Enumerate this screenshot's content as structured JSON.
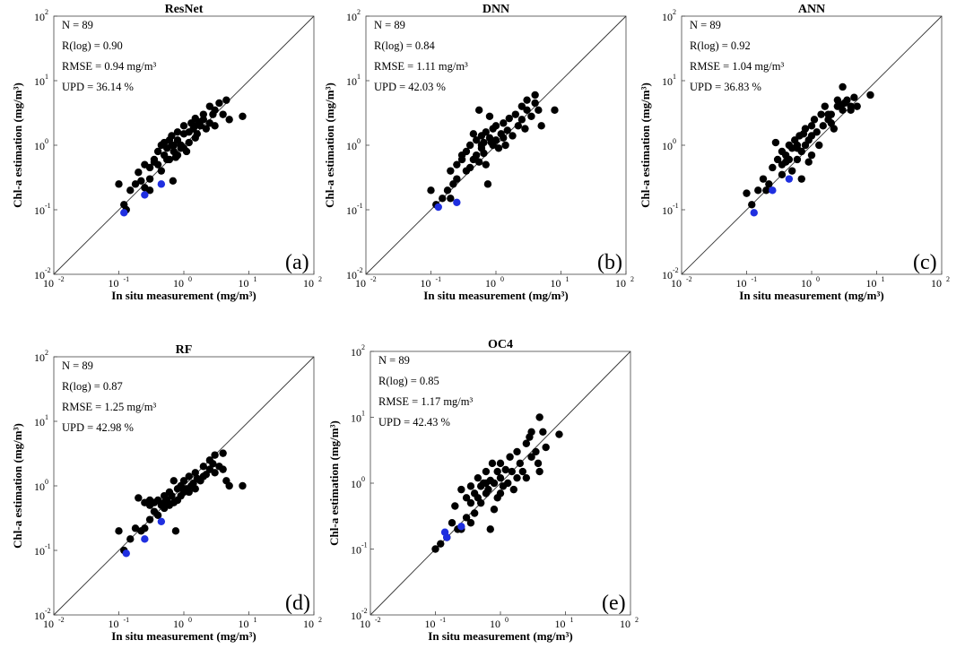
{
  "figure": {
    "ylabel": "Chl-a estimation (mg/m³)",
    "xlabel": "In situ measurement (mg/m³)",
    "tick_labels": [
      "10",
      "10",
      "10",
      "10",
      "10"
    ],
    "tick_exponents": [
      "-2",
      "-1",
      "0",
      "1",
      "2"
    ]
  },
  "chart_data": [
    {
      "type": "scatter",
      "title": "ResNet",
      "panel": "(a)",
      "xlabel": "In situ measurement (mg/m³)",
      "ylabel": "Chl-a estimation (mg/m³)",
      "scale": "log",
      "xlim": [
        0.01,
        100
      ],
      "ylim": [
        0.01,
        100
      ],
      "stats": [
        "N = 89",
        "R(log) = 0.90",
        "RMSE = 0.94 mg/m³",
        "UPD = 36.14 %"
      ],
      "points": [
        [
          0.1,
          0.25
        ],
        [
          0.12,
          0.12
        ],
        [
          0.13,
          0.1
        ],
        [
          0.15,
          0.2
        ],
        [
          0.18,
          0.25
        ],
        [
          0.2,
          0.38
        ],
        [
          0.22,
          0.28
        ],
        [
          0.25,
          0.22
        ],
        [
          0.25,
          0.5
        ],
        [
          0.3,
          0.45
        ],
        [
          0.3,
          0.3
        ],
        [
          0.35,
          0.6
        ],
        [
          0.35,
          0.55
        ],
        [
          0.4,
          0.5
        ],
        [
          0.4,
          0.8
        ],
        [
          0.45,
          1.0
        ],
        [
          0.5,
          0.7
        ],
        [
          0.5,
          1.1
        ],
        [
          0.55,
          0.9
        ],
        [
          0.6,
          1.2
        ],
        [
          0.6,
          0.6
        ],
        [
          0.65,
          1.4
        ],
        [
          0.7,
          0.8
        ],
        [
          0.7,
          1.0
        ],
        [
          0.75,
          0.65
        ],
        [
          0.8,
          1.6
        ],
        [
          0.8,
          1.2
        ],
        [
          0.9,
          1.0
        ],
        [
          0.9,
          0.9
        ],
        [
          1.0,
          2.0
        ],
        [
          1.0,
          1.5
        ],
        [
          1.1,
          0.8
        ],
        [
          1.2,
          1.6
        ],
        [
          1.2,
          1.1
        ],
        [
          1.3,
          2.2
        ],
        [
          1.4,
          1.8
        ],
        [
          1.5,
          2.6
        ],
        [
          1.5,
          1.3
        ],
        [
          1.6,
          1.5
        ],
        [
          1.8,
          2.0
        ],
        [
          2.0,
          3.0
        ],
        [
          2.0,
          2.5
        ],
        [
          2.2,
          1.8
        ],
        [
          2.5,
          4.0
        ],
        [
          2.5,
          2.2
        ],
        [
          3.0,
          3.5
        ],
        [
          3.0,
          2.0
        ],
        [
          3.5,
          4.5
        ],
        [
          4.0,
          3.0
        ],
        [
          4.5,
          5.0
        ],
        [
          5.0,
          2.5
        ],
        [
          0.65,
          1.0
        ],
        [
          0.8,
          0.7
        ],
        [
          1.5,
          2.0
        ],
        [
          2.8,
          3.0
        ],
        [
          0.45,
          0.4
        ],
        [
          0.3,
          0.2
        ],
        [
          1.0,
          0.9
        ],
        [
          1.7,
          2.3
        ],
        [
          0.55,
          0.6
        ],
        [
          8.0,
          2.8
        ],
        [
          0.68,
          0.28
        ]
      ],
      "highlight_points": [
        [
          0.12,
          0.09
        ],
        [
          0.25,
          0.17
        ],
        [
          0.45,
          0.25
        ]
      ]
    },
    {
      "type": "scatter",
      "title": "DNN",
      "panel": "(b)",
      "xlabel": "In situ measurement (mg/m³)",
      "ylabel": "Chl-a estimation (mg/m³)",
      "scale": "log",
      "xlim": [
        0.01,
        100
      ],
      "ylim": [
        0.01,
        100
      ],
      "stats": [
        "N = 89",
        "R(log) = 0.84",
        "RMSE = 1.11 mg/m³",
        "UPD = 42.03 %"
      ],
      "points": [
        [
          0.1,
          0.2
        ],
        [
          0.12,
          0.12
        ],
        [
          0.15,
          0.15
        ],
        [
          0.18,
          0.2
        ],
        [
          0.2,
          0.4
        ],
        [
          0.22,
          0.25
        ],
        [
          0.25,
          0.3
        ],
        [
          0.25,
          0.5
        ],
        [
          0.3,
          0.6
        ],
        [
          0.35,
          0.8
        ],
        [
          0.35,
          0.4
        ],
        [
          0.4,
          1.0
        ],
        [
          0.45,
          0.6
        ],
        [
          0.45,
          1.5
        ],
        [
          0.5,
          1.2
        ],
        [
          0.5,
          0.7
        ],
        [
          0.55,
          3.5
        ],
        [
          0.6,
          0.9
        ],
        [
          0.6,
          1.4
        ],
        [
          0.65,
          1.1
        ],
        [
          0.7,
          1.6
        ],
        [
          0.7,
          0.5
        ],
        [
          0.75,
          0.25
        ],
        [
          0.8,
          1.3
        ],
        [
          0.8,
          2.8
        ],
        [
          0.9,
          1.0
        ],
        [
          0.9,
          1.8
        ],
        [
          1.0,
          1.2
        ],
        [
          1.0,
          2.0
        ],
        [
          1.1,
          0.9
        ],
        [
          1.2,
          1.5
        ],
        [
          1.3,
          2.2
        ],
        [
          1.4,
          1.0
        ],
        [
          1.5,
          1.7
        ],
        [
          1.6,
          2.6
        ],
        [
          1.8,
          1.4
        ],
        [
          2.0,
          3.0
        ],
        [
          2.2,
          2.0
        ],
        [
          2.5,
          4.0
        ],
        [
          2.5,
          2.5
        ],
        [
          3.0,
          3.5
        ],
        [
          3.0,
          5.0
        ],
        [
          3.5,
          2.8
        ],
        [
          4.0,
          4.5
        ],
        [
          4.0,
          6.0
        ],
        [
          4.5,
          3.5
        ],
        [
          5.0,
          2.0
        ],
        [
          8.0,
          3.5
        ],
        [
          0.55,
          0.55
        ],
        [
          0.3,
          0.7
        ],
        [
          0.65,
          0.75
        ],
        [
          0.85,
          1.1
        ],
        [
          1.3,
          1.3
        ],
        [
          0.4,
          0.45
        ],
        [
          0.6,
          1.0
        ],
        [
          2.8,
          1.8
        ],
        [
          0.2,
          0.15
        ]
      ],
      "highlight_points": [
        [
          0.13,
          0.11
        ],
        [
          0.25,
          0.13
        ]
      ]
    },
    {
      "type": "scatter",
      "title": "ANN",
      "panel": "(c)",
      "xlabel": "In situ measurement (mg/m³)",
      "ylabel": "Chl-a estimation (mg/m³)",
      "scale": "log",
      "xlim": [
        0.01,
        100
      ],
      "ylim": [
        0.01,
        100
      ],
      "stats": [
        "N = 89",
        "R(log) = 0.92",
        "RMSE = 1.04 mg/m³",
        "UPD = 36.83 %"
      ],
      "points": [
        [
          0.1,
          0.18
        ],
        [
          0.12,
          0.12
        ],
        [
          0.15,
          0.2
        ],
        [
          0.18,
          0.3
        ],
        [
          0.2,
          0.2
        ],
        [
          0.22,
          0.25
        ],
        [
          0.25,
          0.45
        ],
        [
          0.28,
          1.1
        ],
        [
          0.3,
          0.6
        ],
        [
          0.35,
          0.5
        ],
        [
          0.35,
          0.8
        ],
        [
          0.4,
          0.7
        ],
        [
          0.4,
          0.55
        ],
        [
          0.45,
          1.0
        ],
        [
          0.5,
          0.9
        ],
        [
          0.5,
          0.4
        ],
        [
          0.55,
          1.2
        ],
        [
          0.6,
          1.0
        ],
        [
          0.6,
          0.6
        ],
        [
          0.65,
          1.4
        ],
        [
          0.7,
          0.8
        ],
        [
          0.7,
          0.3
        ],
        [
          0.75,
          1.5
        ],
        [
          0.8,
          1.8
        ],
        [
          0.8,
          1.0
        ],
        [
          0.9,
          1.2
        ],
        [
          0.9,
          0.55
        ],
        [
          1.0,
          2.0
        ],
        [
          1.0,
          1.4
        ],
        [
          1.1,
          2.5
        ],
        [
          1.2,
          1.6
        ],
        [
          1.3,
          1.0
        ],
        [
          1.4,
          3.0
        ],
        [
          1.5,
          2.0
        ],
        [
          1.6,
          4.0
        ],
        [
          1.8,
          2.5
        ],
        [
          2.0,
          3.0
        ],
        [
          2.2,
          1.8
        ],
        [
          2.5,
          4.0
        ],
        [
          2.5,
          5.0
        ],
        [
          3.0,
          3.5
        ],
        [
          3.0,
          8.0
        ],
        [
          3.5,
          5.0
        ],
        [
          4.0,
          4.0
        ],
        [
          4.0,
          3.5
        ],
        [
          4.5,
          5.5
        ],
        [
          5.0,
          4.0
        ],
        [
          8.0,
          6.0
        ],
        [
          3.2,
          4.5
        ],
        [
          2.0,
          2.2
        ],
        [
          1.0,
          0.7
        ],
        [
          0.35,
          0.35
        ],
        [
          0.45,
          0.6
        ],
        [
          1.8,
          3.0
        ],
        [
          2.8,
          4.2
        ],
        [
          0.6,
          0.9
        ]
      ],
      "highlight_points": [
        [
          0.13,
          0.09
        ],
        [
          0.25,
          0.2
        ],
        [
          0.45,
          0.3
        ]
      ]
    },
    {
      "type": "scatter",
      "title": "RF",
      "panel": "(d)",
      "xlabel": "In situ measurement (mg/m³)",
      "ylabel": "Chl-a estimation (mg/m³)",
      "scale": "log",
      "xlim": [
        0.01,
        100
      ],
      "ylim": [
        0.01,
        100
      ],
      "stats": [
        "N = 89",
        "R(log) = 0.87",
        "RMSE = 1.25 mg/m³",
        "UPD = 42.98 %"
      ],
      "points": [
        [
          0.1,
          0.2
        ],
        [
          0.12,
          0.1
        ],
        [
          0.15,
          0.15
        ],
        [
          0.18,
          0.22
        ],
        [
          0.2,
          0.65
        ],
        [
          0.22,
          0.2
        ],
        [
          0.25,
          0.22
        ],
        [
          0.25,
          0.55
        ],
        [
          0.3,
          0.5
        ],
        [
          0.3,
          0.3
        ],
        [
          0.35,
          0.55
        ],
        [
          0.35,
          0.4
        ],
        [
          0.4,
          0.6
        ],
        [
          0.4,
          0.35
        ],
        [
          0.45,
          0.5
        ],
        [
          0.5,
          0.7
        ],
        [
          0.5,
          0.45
        ],
        [
          0.55,
          0.6
        ],
        [
          0.6,
          0.5
        ],
        [
          0.6,
          0.8
        ],
        [
          0.65,
          0.7
        ],
        [
          0.7,
          0.55
        ],
        [
          0.75,
          0.2
        ],
        [
          0.8,
          0.9
        ],
        [
          0.8,
          0.6
        ],
        [
          0.9,
          1.0
        ],
        [
          0.9,
          0.7
        ],
        [
          1.0,
          1.2
        ],
        [
          1.0,
          0.8
        ],
        [
          1.1,
          0.9
        ],
        [
          1.2,
          1.4
        ],
        [
          1.3,
          1.0
        ],
        [
          1.4,
          1.1
        ],
        [
          1.5,
          1.6
        ],
        [
          1.6,
          1.3
        ],
        [
          1.8,
          1.2
        ],
        [
          2.0,
          2.0
        ],
        [
          2.2,
          1.5
        ],
        [
          2.5,
          2.5
        ],
        [
          2.5,
          1.8
        ],
        [
          3.0,
          3.0
        ],
        [
          3.0,
          1.6
        ],
        [
          3.5,
          2.0
        ],
        [
          4.0,
          3.2
        ],
        [
          4.0,
          1.8
        ],
        [
          4.5,
          1.2
        ],
        [
          5.0,
          1.0
        ],
        [
          8.0,
          1.0
        ],
        [
          0.7,
          1.2
        ],
        [
          1.5,
          0.9
        ],
        [
          2.8,
          2.2
        ],
        [
          0.5,
          0.55
        ],
        [
          1.2,
          0.8
        ],
        [
          0.3,
          0.6
        ],
        [
          2.0,
          1.4
        ]
      ],
      "highlight_points": [
        [
          0.13,
          0.09
        ],
        [
          0.25,
          0.15
        ],
        [
          0.45,
          0.28
        ]
      ]
    },
    {
      "type": "scatter",
      "title": "OC4",
      "panel": "(e)",
      "xlabel": "In situ measurement (mg/m³)",
      "ylabel": "Chl-a estimation (mg/m³)",
      "scale": "log",
      "xlim": [
        0.01,
        100
      ],
      "ylim": [
        0.01,
        100
      ],
      "stats": [
        "N = 89",
        "R(log) = 0.85",
        "RMSE = 1.17 mg/m³",
        "UPD = 42.43 %"
      ],
      "points": [
        [
          0.1,
          0.1
        ],
        [
          0.12,
          0.12
        ],
        [
          0.15,
          0.15
        ],
        [
          0.18,
          0.25
        ],
        [
          0.2,
          0.45
        ],
        [
          0.22,
          0.2
        ],
        [
          0.25,
          0.2
        ],
        [
          0.25,
          0.8
        ],
        [
          0.3,
          0.6
        ],
        [
          0.3,
          0.3
        ],
        [
          0.35,
          0.5
        ],
        [
          0.35,
          0.9
        ],
        [
          0.4,
          0.35
        ],
        [
          0.4,
          0.7
        ],
        [
          0.45,
          1.2
        ],
        [
          0.5,
          0.9
        ],
        [
          0.5,
          0.5
        ],
        [
          0.55,
          1.0
        ],
        [
          0.6,
          0.7
        ],
        [
          0.6,
          1.5
        ],
        [
          0.65,
          0.8
        ],
        [
          0.7,
          1.1
        ],
        [
          0.7,
          0.2
        ],
        [
          0.75,
          2.0
        ],
        [
          0.8,
          1.0
        ],
        [
          0.8,
          0.4
        ],
        [
          0.9,
          1.5
        ],
        [
          0.9,
          0.6
        ],
        [
          1.0,
          1.2
        ],
        [
          1.0,
          2.0
        ],
        [
          1.1,
          0.9
        ],
        [
          1.2,
          1.6
        ],
        [
          1.3,
          1.0
        ],
        [
          1.4,
          2.5
        ],
        [
          1.5,
          1.5
        ],
        [
          1.6,
          0.8
        ],
        [
          1.8,
          3.0
        ],
        [
          2.0,
          2.0
        ],
        [
          2.2,
          1.5
        ],
        [
          2.5,
          4.0
        ],
        [
          2.5,
          1.2
        ],
        [
          3.0,
          2.5
        ],
        [
          3.0,
          6.0
        ],
        [
          3.5,
          3.0
        ],
        [
          4.0,
          10.0
        ],
        [
          4.0,
          1.5
        ],
        [
          4.5,
          6.0
        ],
        [
          5.0,
          3.5
        ],
        [
          8.0,
          5.5
        ],
        [
          3.8,
          2.0
        ],
        [
          2.8,
          5.0
        ],
        [
          0.35,
          0.25
        ],
        [
          1.0,
          0.7
        ],
        [
          0.6,
          1.0
        ],
        [
          1.8,
          1.2
        ],
        [
          0.45,
          0.6
        ]
      ],
      "highlight_points": [
        [
          0.15,
          0.15
        ],
        [
          0.25,
          0.22
        ],
        [
          0.14,
          0.18
        ]
      ]
    }
  ]
}
